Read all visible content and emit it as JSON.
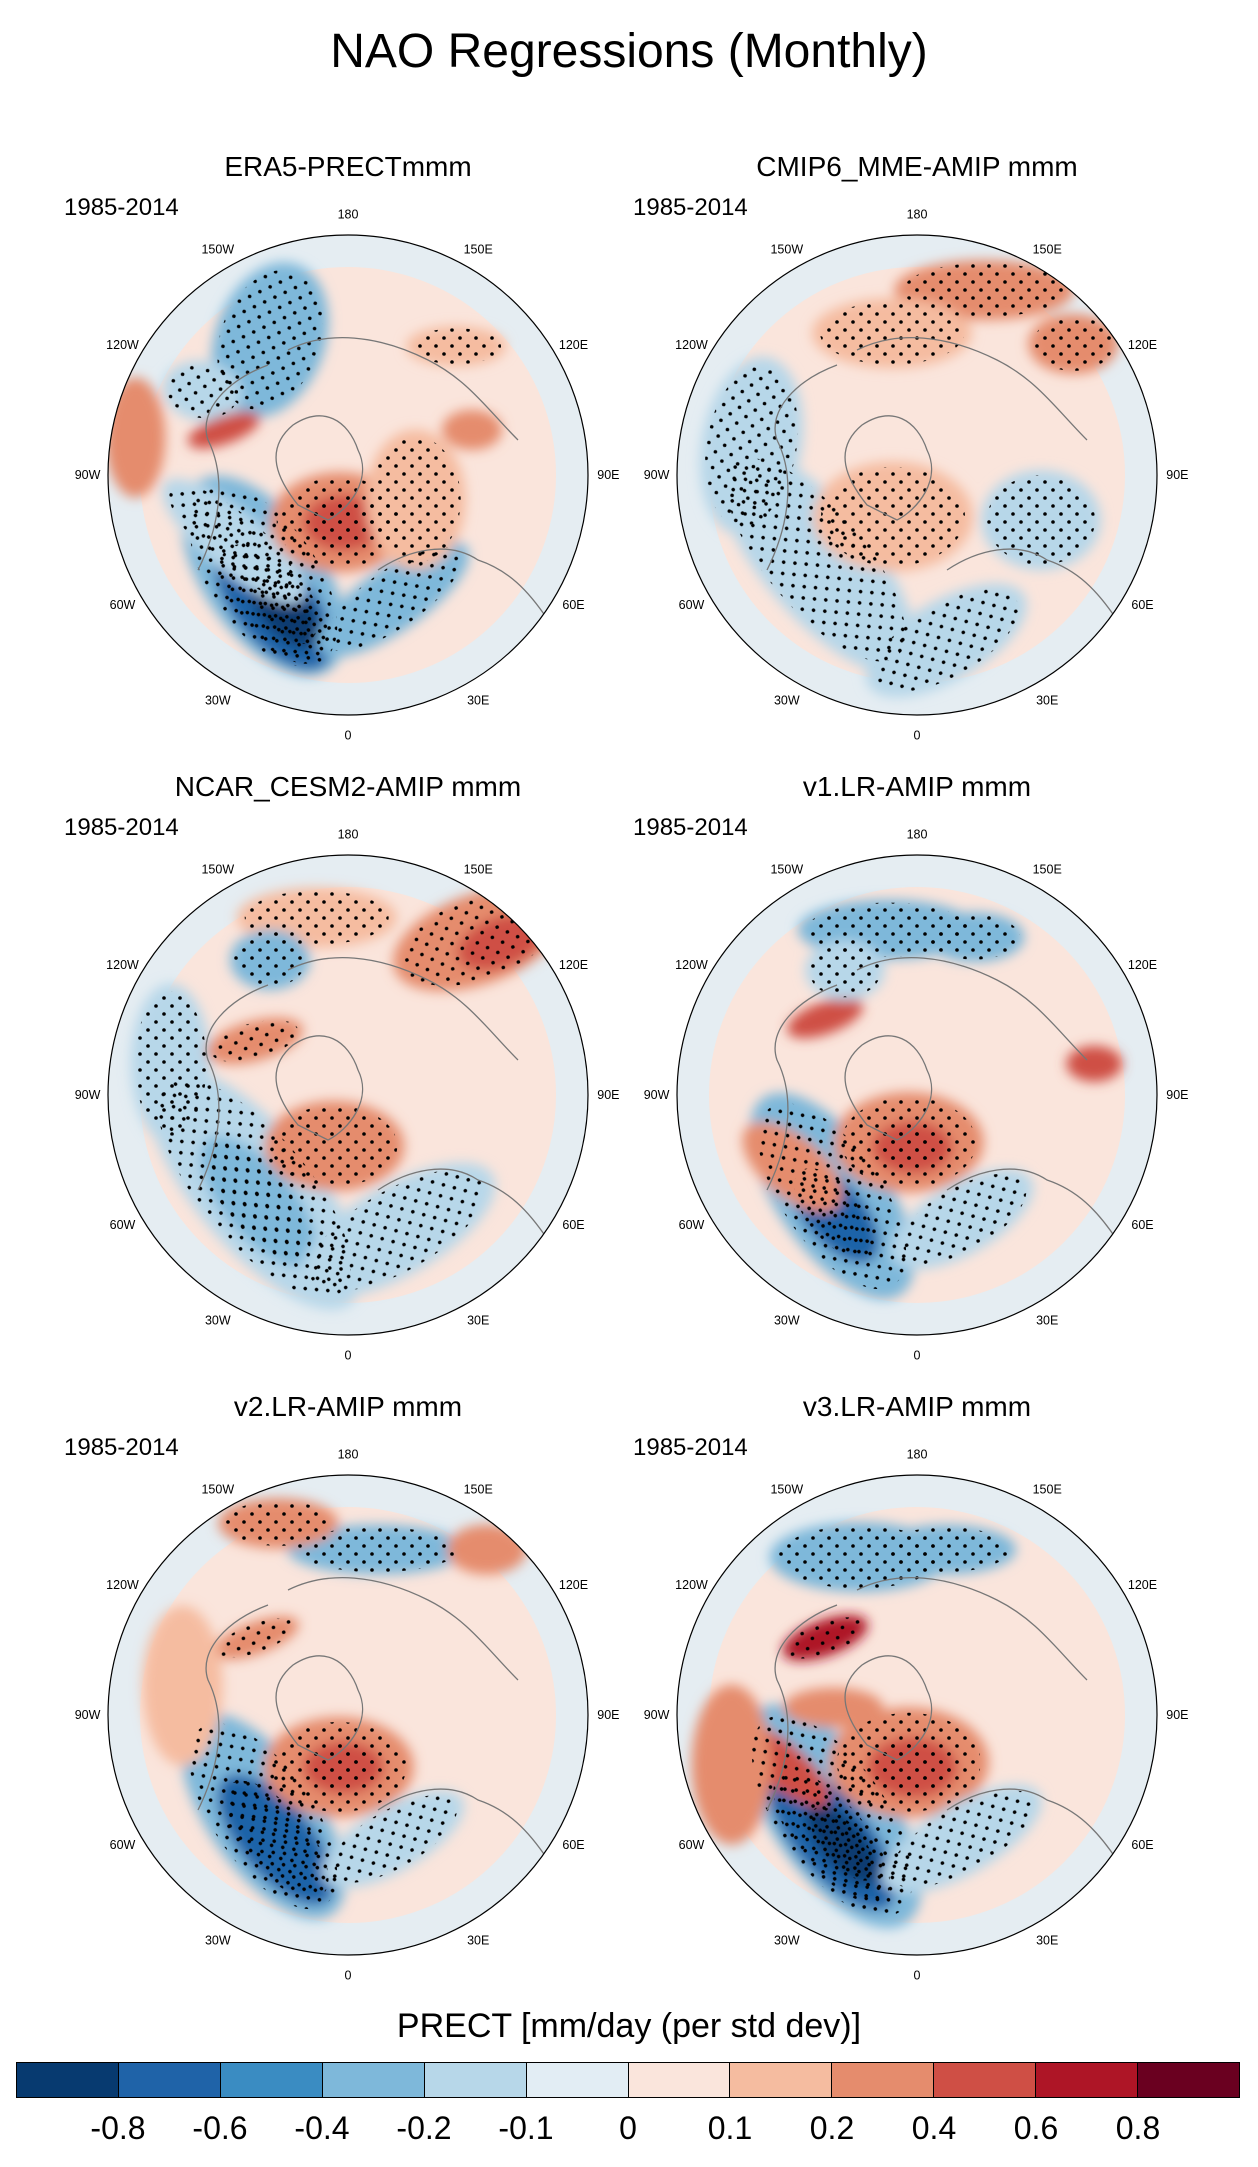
{
  "title": "NAO Regressions (Monthly)",
  "panels": [
    {
      "title": "ERA5-PRECTmmm",
      "period": "1985-2014",
      "pattern": "era5"
    },
    {
      "title": "CMIP6_MME-AMIP  mmm",
      "period": "1985-2014",
      "pattern": "cmip6"
    },
    {
      "title": "NCAR_CESM2-AMIP  mmm",
      "period": "1985-2014",
      "pattern": "cesm2"
    },
    {
      "title": "v1.LR-AMIP  mmm",
      "period": "1985-2014",
      "pattern": "v1"
    },
    {
      "title": "v2.LR-AMIP  mmm",
      "period": "1985-2014",
      "pattern": "v2"
    },
    {
      "title": "v3.LR-AMIP  mmm",
      "period": "1985-2014",
      "pattern": "v3"
    }
  ],
  "longitude_labels": [
    "180",
    "150E",
    "120E",
    "90E",
    "60E",
    "30E",
    "0",
    "30W",
    "60W",
    "90W",
    "120W",
    "150W"
  ],
  "colorbar": {
    "label": "PRECT [mm/day (per std dev)]",
    "ticks": [
      "-0.8",
      "-0.6",
      "-0.4",
      "-0.2",
      "-0.1",
      "0",
      "0.1",
      "0.2",
      "0.4",
      "0.6",
      "0.8"
    ],
    "colors": [
      "#073a70",
      "#1f63a8",
      "#3a8cc2",
      "#7eb8da",
      "#b7d7e9",
      "#e2edf4",
      "#fae5dc",
      "#f5bca0",
      "#e58c6d",
      "#cf4f45",
      "#ae1526",
      "#6a0020"
    ]
  }
}
